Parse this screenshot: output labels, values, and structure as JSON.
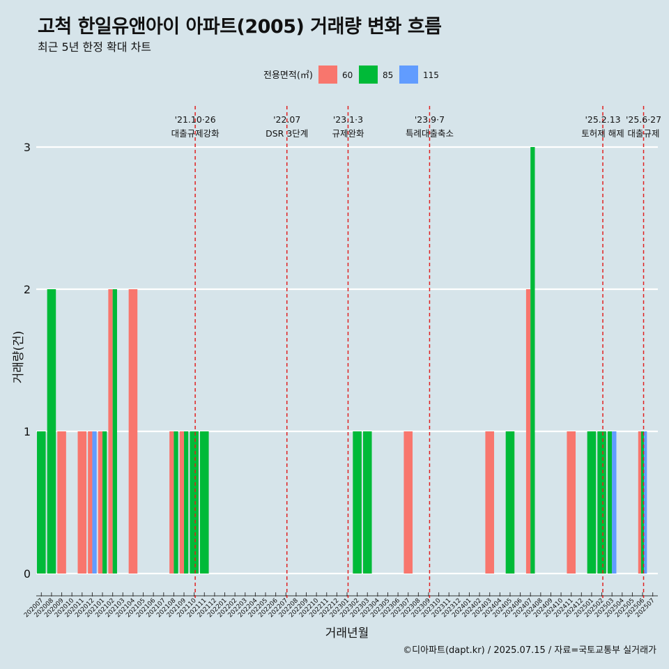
{
  "chart_data": {
    "type": "bar",
    "title": "고척 한일유앤아이 아파트(2005) 거래량 변화 흐름",
    "subtitle": "최근 5년 한정 확대 차트",
    "xlabel": "거래년월",
    "ylabel": "거래량(건)",
    "ylim": [
      0,
      3
    ],
    "yticks": [
      0,
      1,
      2,
      3
    ],
    "grid": "horizontal",
    "legend": {
      "title": "전용면적(㎡)",
      "position": "top"
    },
    "caption": "©디아파트(dapt.kr) / 2025.07.15 / 자료=국토교통부 실거래가",
    "categories": [
      "202007",
      "202008",
      "202009",
      "202010",
      "202011",
      "202012",
      "202101",
      "202102",
      "202103",
      "202104",
      "202105",
      "202106",
      "202107",
      "202108",
      "202109",
      "202110",
      "202111",
      "202112",
      "202201",
      "202202",
      "202203",
      "202204",
      "202205",
      "202206",
      "202207",
      "202208",
      "202209",
      "202210",
      "202211",
      "202212",
      "202301",
      "202302",
      "202303",
      "202304",
      "202305",
      "202306",
      "202307",
      "202308",
      "202309",
      "202310",
      "202311",
      "202312",
      "202401",
      "202402",
      "202403",
      "202404",
      "202405",
      "202406",
      "202407",
      "202408",
      "202409",
      "202410",
      "202411",
      "202412",
      "202501",
      "202502",
      "202503",
      "202504",
      "202505",
      "202506",
      "202507"
    ],
    "series": [
      {
        "name": "60",
        "color": "#f8766d",
        "values": [
          0,
          0,
          1,
          0,
          1,
          1,
          1,
          2,
          0,
          2,
          0,
          0,
          0,
          1,
          1,
          0,
          0,
          0,
          0,
          0,
          0,
          0,
          0,
          0,
          0,
          0,
          0,
          0,
          0,
          0,
          0,
          0,
          0,
          0,
          0,
          0,
          1,
          0,
          0,
          0,
          0,
          0,
          0,
          0,
          1,
          0,
          0,
          0,
          2,
          0,
          0,
          0,
          1,
          0,
          0,
          0,
          0,
          0,
          0,
          1,
          0
        ]
      },
      {
        "name": "85",
        "color": "#00ba38",
        "values": [
          1,
          2,
          0,
          0,
          0,
          0,
          1,
          2,
          0,
          0,
          0,
          0,
          0,
          1,
          1,
          1,
          1,
          0,
          0,
          0,
          0,
          0,
          0,
          0,
          0,
          0,
          0,
          0,
          0,
          0,
          0,
          1,
          1,
          0,
          0,
          0,
          0,
          0,
          0,
          0,
          0,
          0,
          0,
          0,
          0,
          0,
          1,
          0,
          3,
          0,
          0,
          0,
          0,
          0,
          1,
          1,
          1,
          0,
          0,
          1,
          0
        ]
      },
      {
        "name": "115",
        "color": "#619cff",
        "values": [
          0,
          0,
          0,
          0,
          0,
          1,
          0,
          0,
          0,
          0,
          0,
          0,
          0,
          0,
          0,
          0,
          0,
          0,
          0,
          0,
          0,
          0,
          0,
          0,
          0,
          0,
          0,
          0,
          0,
          0,
          0,
          0,
          0,
          0,
          0,
          0,
          0,
          0,
          0,
          0,
          0,
          0,
          0,
          0,
          0,
          0,
          0,
          0,
          0,
          0,
          0,
          0,
          0,
          0,
          0,
          0,
          1,
          0,
          0,
          1,
          0
        ]
      }
    ],
    "annotations": [
      {
        "x": "202110",
        "date": "'21.10·26",
        "text": "대출규제강화"
      },
      {
        "x": "202207",
        "date": "'22.07",
        "text": "DSR 3단계"
      },
      {
        "x": "202301",
        "date": "'23.1·3",
        "text": "규제완화"
      },
      {
        "x": "202309",
        "date": "'23.9·7",
        "text": "특례대출축소"
      },
      {
        "x": "202502",
        "date": "'25.2.13",
        "text": "토허제 해제"
      },
      {
        "x": "202506",
        "date": "'25.6·27",
        "text": "대출규제"
      }
    ]
  }
}
